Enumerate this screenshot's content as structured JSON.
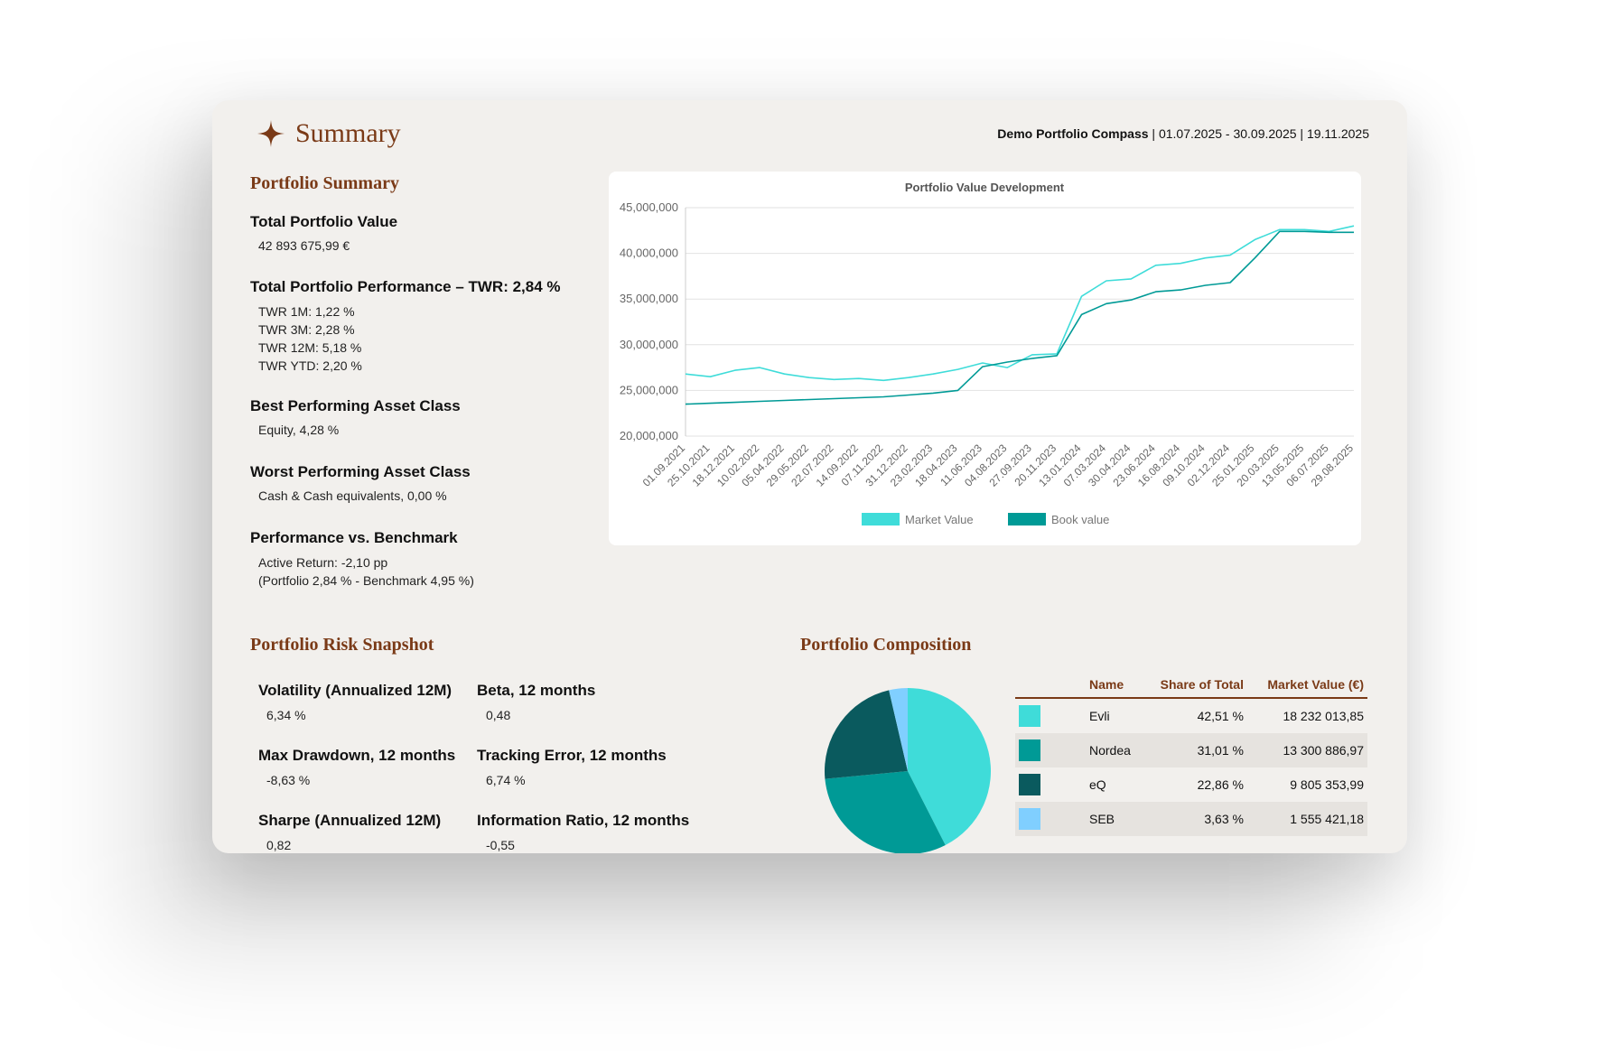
{
  "header": {
    "title": "Summary",
    "portfolio_name": "Demo Portfolio Compass",
    "meta_rest": " | 01.07.2025 - 30.09.2025 | 19.11.2025"
  },
  "portfolio_summary": {
    "title": "Portfolio Summary",
    "total_value_label": "Total Portfolio Value",
    "total_value": "42 893 675,99 €",
    "performance_label": "Total Portfolio Performance – TWR: 2,84 %",
    "twr_1m": "TWR 1M: 1,22 %",
    "twr_3m": "TWR 3M: 2,28 %",
    "twr_12m": "TWR 12M: 5,18 %",
    "twr_ytd": "TWR YTD: 2,20 %",
    "best_label": "Best Performing Asset Class",
    "best_value": "Equity, 4,28 %",
    "worst_label": "Worst Performing Asset Class",
    "worst_value": "Cash & Cash equivalents, 0,00 %",
    "bench_label": "Performance vs. Benchmark",
    "bench_line1": "Active Return: -2,10 pp",
    "bench_line2": "(Portfolio 2,84 % - Benchmark 4,95 %)"
  },
  "risk": {
    "title": "Portfolio Risk Snapshot",
    "vol_label": "Volatility (Annualized 12M)",
    "vol_value": "6,34 %",
    "beta_label": "Beta, 12 months",
    "beta_value": "0,48",
    "mdd_label": "Max Drawdown, 12 months",
    "mdd_value": "-8,63 %",
    "te_label": "Tracking Error, 12 months",
    "te_value": "6,74 %",
    "sharpe_label": "Sharpe (Annualized 12M)",
    "sharpe_value": "0,82",
    "ir_label": "Information Ratio, 12 months",
    "ir_value": "-0,55"
  },
  "composition": {
    "title": "Portfolio Composition",
    "columns": [
      "Name",
      "Share of Total",
      "Market Value (€)"
    ],
    "rows": [
      {
        "name": "Evli",
        "share": "42,51 %",
        "value": "18 232 013,85",
        "color": "#3fdcd9"
      },
      {
        "name": "Nordea",
        "share": "31,01 %",
        "value": "13 300 886,97",
        "color": "#009a96"
      },
      {
        "name": "eQ",
        "share": "22,86 %",
        "value": "9 805 353,99",
        "color": "#0a5a5e"
      },
      {
        "name": "SEB",
        "share": "3,63 %",
        "value": "1 555 421,18",
        "color": "#80cfff"
      }
    ],
    "pie_shares": [
      42.51,
      31.01,
      22.86,
      3.63
    ]
  },
  "chart_data": {
    "type": "line",
    "title": "Portfolio Value Development",
    "ylim": [
      20000000,
      45000000
    ],
    "y_ticks": [
      "45,000,000",
      "40,000,000",
      "35,000,000",
      "30,000,000",
      "25,000,000",
      "20,000,000"
    ],
    "y_tick_values": [
      45000000,
      40000000,
      35000000,
      30000000,
      25000000,
      20000000
    ],
    "categories": [
      "01.09.2021",
      "25.10.2021",
      "18.12.2021",
      "10.02.2022",
      "05.04.2022",
      "29.05.2022",
      "22.07.2022",
      "14.09.2022",
      "07.11.2022",
      "31.12.2022",
      "23.02.2023",
      "18.04.2023",
      "11.06.2023",
      "04.08.2023",
      "27.09.2023",
      "20.11.2023",
      "13.01.2024",
      "07.03.2024",
      "30.04.2024",
      "23.06.2024",
      "16.08.2024",
      "09.10.2024",
      "02.12.2024",
      "25.01.2025",
      "20.03.2025",
      "13.05.2025",
      "06.07.2025",
      "29.08.2025"
    ],
    "series": [
      {
        "name": "Market Value",
        "color": "#3fdcd9",
        "values": [
          26800000,
          26500000,
          27200000,
          27500000,
          26800000,
          26400000,
          26200000,
          26300000,
          26100000,
          26400000,
          26800000,
          27300000,
          28000000,
          27500000,
          28900000,
          29000000,
          35300000,
          37000000,
          37200000,
          38700000,
          38900000,
          39500000,
          39800000,
          41500000,
          42600000,
          42600000,
          42400000,
          43000000
        ]
      },
      {
        "name": "Book value",
        "color": "#009a96",
        "values": [
          23500000,
          23600000,
          23700000,
          23800000,
          23900000,
          24000000,
          24100000,
          24200000,
          24300000,
          24500000,
          24700000,
          25000000,
          27600000,
          28100000,
          28500000,
          28800000,
          33300000,
          34500000,
          34900000,
          35800000,
          36000000,
          36500000,
          36800000,
          39500000,
          42400000,
          42400000,
          42300000,
          42300000
        ]
      }
    ]
  }
}
